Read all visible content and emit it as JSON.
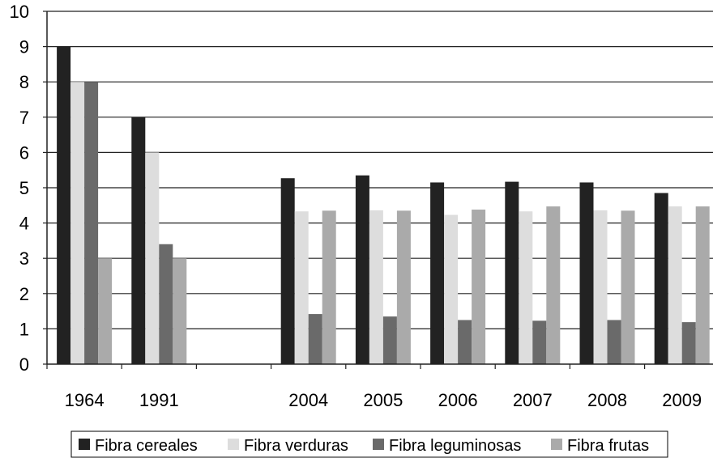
{
  "chart_data": {
    "type": "bar",
    "categories": [
      "1964",
      "1991",
      "",
      "2004",
      "2005",
      "2006",
      "2007",
      "2008",
      "2009"
    ],
    "ylim": [
      0,
      10
    ],
    "yticks": [
      "0",
      "1",
      "2",
      "3",
      "4",
      "5",
      "6",
      "7",
      "8",
      "9",
      "10"
    ],
    "grid": true,
    "legend_position": "bottom",
    "series": [
      {
        "name": "Fibra cereales",
        "color": "#222222",
        "values": [
          9,
          7,
          null,
          5.27,
          5.35,
          5.15,
          5.17,
          5.15,
          4.85
        ]
      },
      {
        "name": "Fibra verduras",
        "color": "#dddddd",
        "values": [
          8,
          6,
          null,
          4.33,
          4.36,
          4.23,
          4.33,
          4.36,
          4.47
        ]
      },
      {
        "name": "Fibra leguminosas",
        "color": "#6a6a6a",
        "values": [
          8,
          3.4,
          null,
          1.42,
          1.35,
          1.25,
          1.23,
          1.25,
          1.19
        ]
      },
      {
        "name": "Fibra frutas",
        "color": "#aaaaaa",
        "values": [
          3,
          3,
          null,
          4.35,
          4.35,
          4.38,
          4.47,
          4.35,
          4.47
        ]
      }
    ]
  }
}
